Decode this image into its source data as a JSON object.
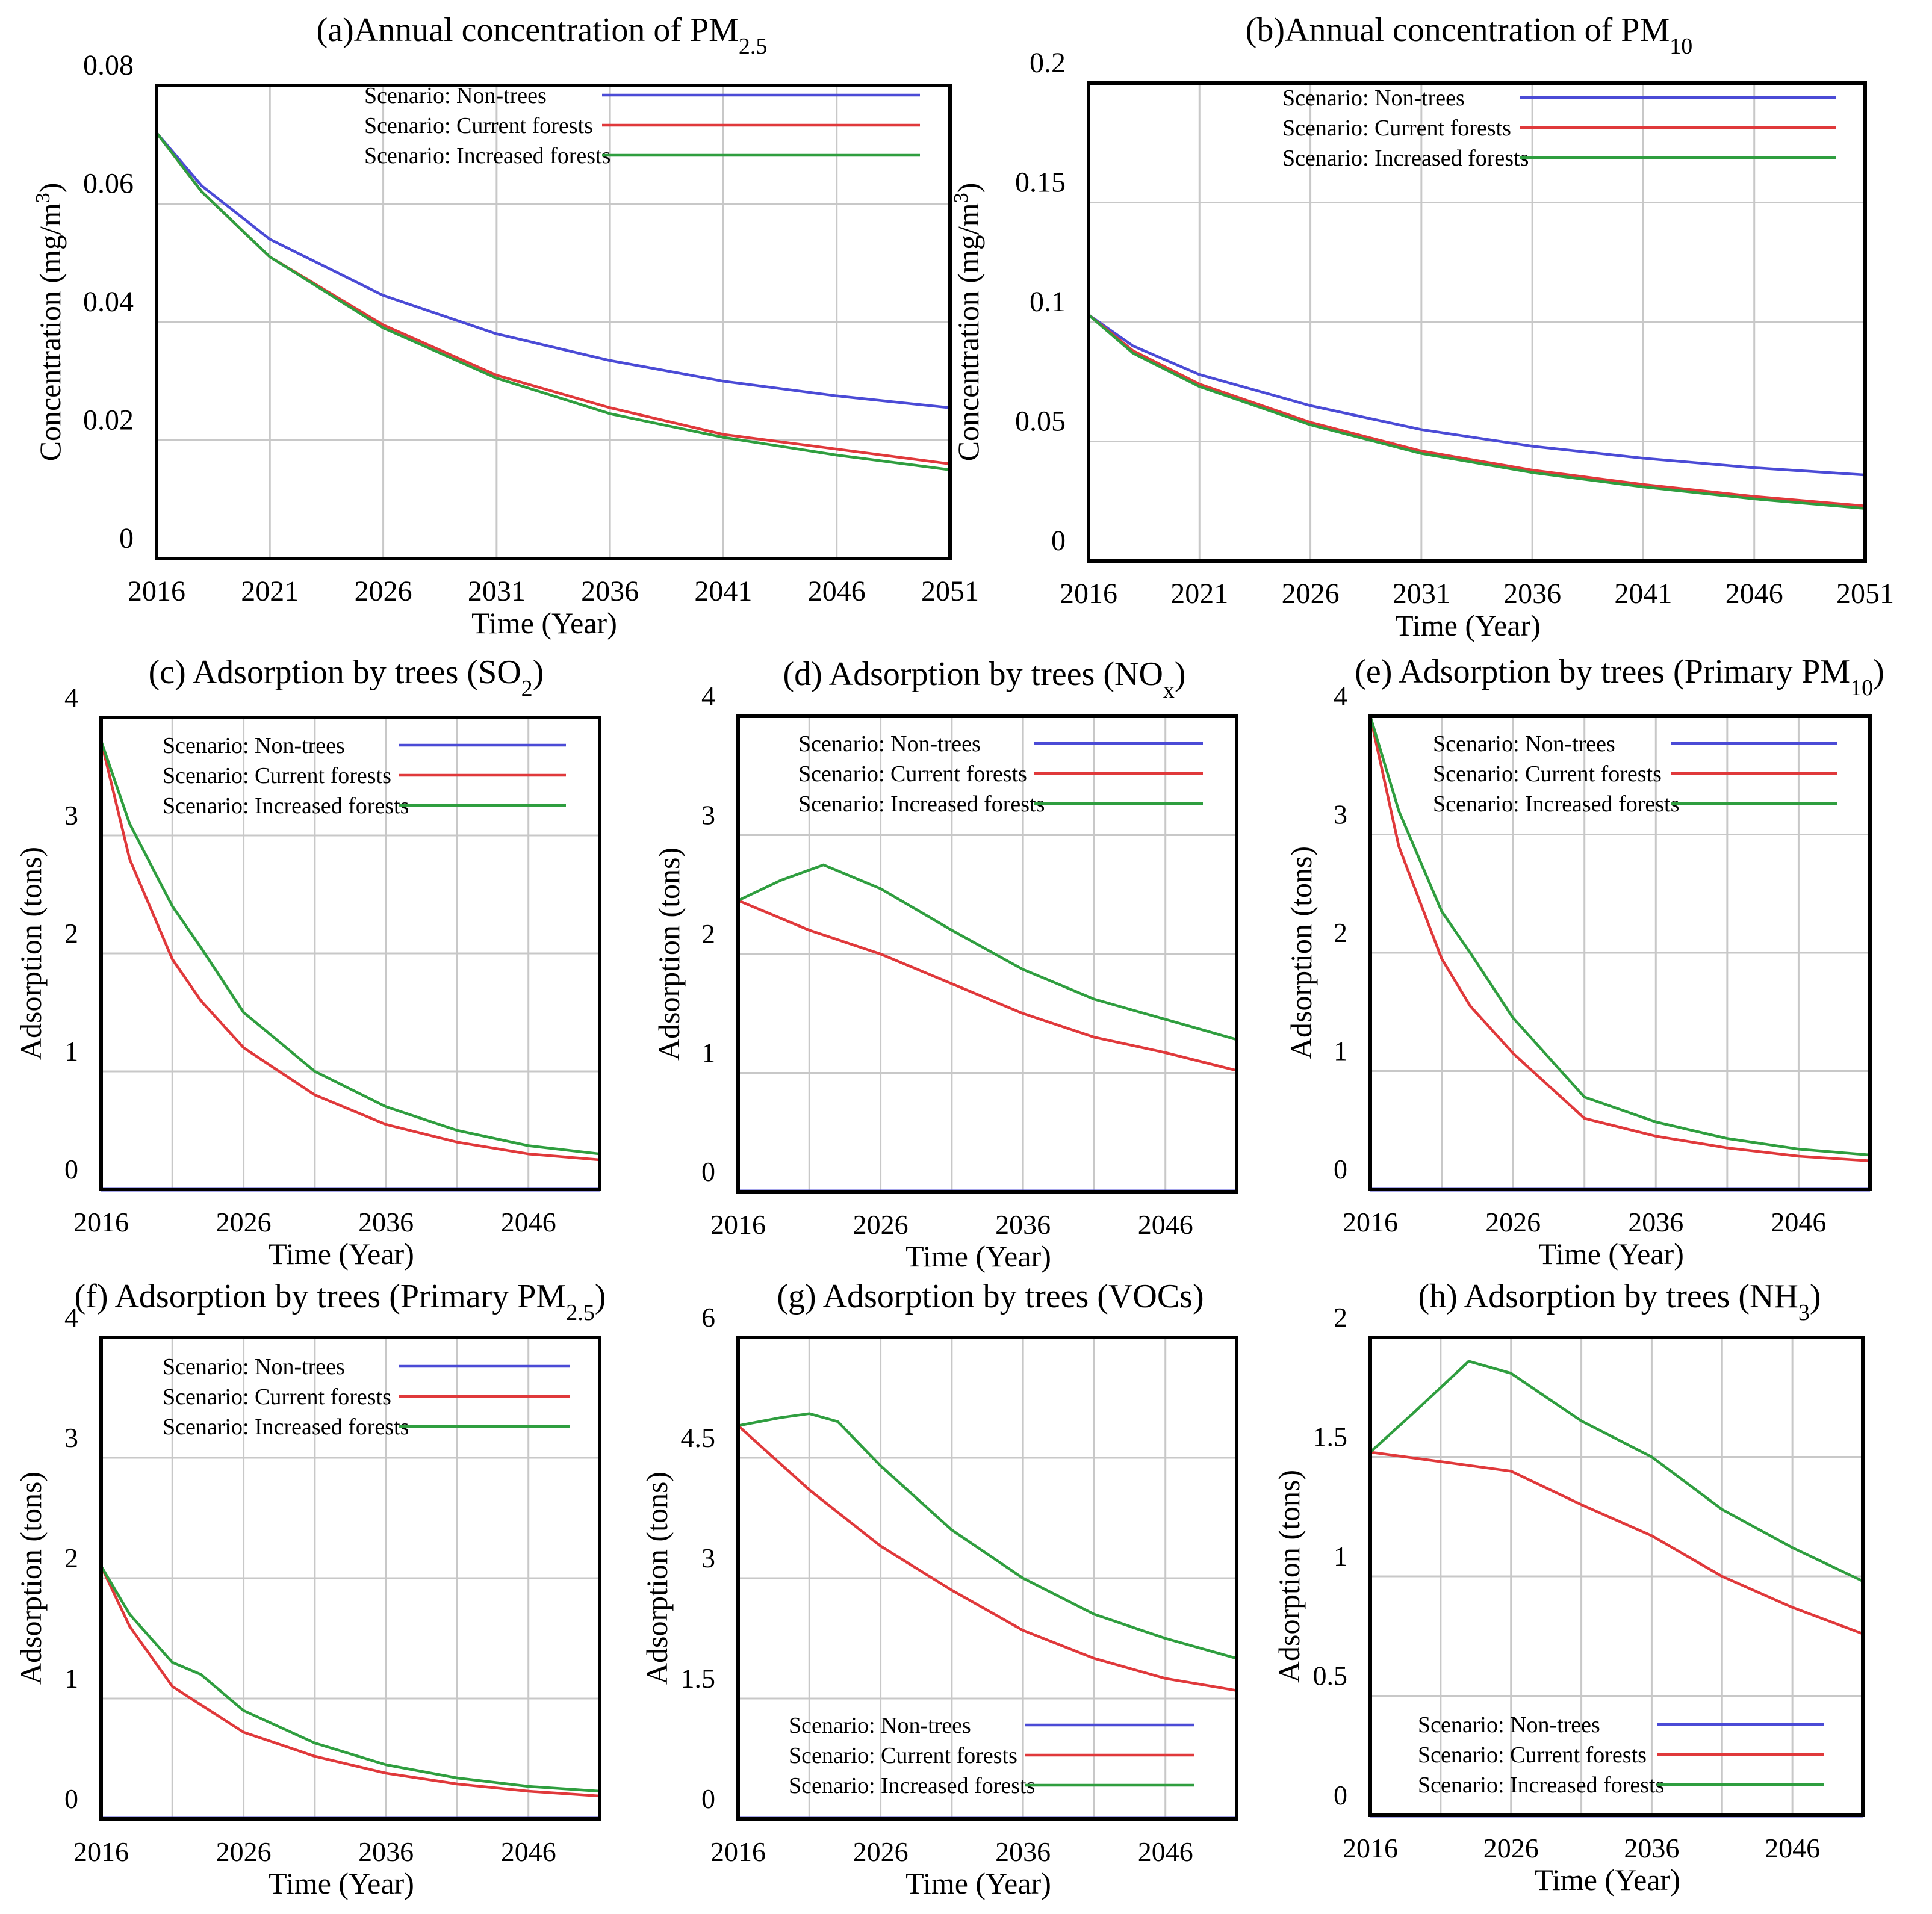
{
  "colors": {
    "non_trees": "#4b4bd6",
    "current_forests": "#e0393b",
    "increased_forests": "#2f9e3f",
    "frame": "#000000",
    "grid": "#c8c8c8"
  },
  "chart_data": [
    {
      "id": "a",
      "type": "line",
      "title": "(a)Annual concentration of PM",
      "title_sub": "2.5",
      "xlabel": "Time (Year)",
      "ylabel": "Concentration (mg/m",
      "ylabel_sup": "3",
      "ylabel_end": ")",
      "xlim": [
        2016,
        2051
      ],
      "ylim": [
        0,
        0.08
      ],
      "xticks": [
        2016,
        2021,
        2026,
        2031,
        2036,
        2041,
        2046,
        2051
      ],
      "xtick_labels": [
        "2016",
        "2021",
        "2026",
        "2031",
        "2036",
        "2041",
        "2046",
        "2051"
      ],
      "yticks": [
        0,
        0.02,
        0.04,
        0.06,
        0.08
      ],
      "ytick_labels": [
        "0",
        "0.02",
        "0.04",
        "0.06",
        "0.08"
      ],
      "legend_pos": "top",
      "series": [
        {
          "name": "Scenario: Non-trees",
          "color_key": "non_trees",
          "x": [
            2016,
            2018,
            2021,
            2026,
            2031,
            2036,
            2041,
            2046,
            2051
          ],
          "y": [
            0.072,
            0.063,
            0.054,
            0.0445,
            0.038,
            0.0335,
            0.03,
            0.0275,
            0.0255
          ]
        },
        {
          "name": "Scenario: Current forests",
          "color_key": "current_forests",
          "x": [
            2016,
            2018,
            2021,
            2026,
            2031,
            2036,
            2041,
            2046,
            2051
          ],
          "y": [
            0.072,
            0.062,
            0.051,
            0.0395,
            0.031,
            0.0255,
            0.021,
            0.0185,
            0.016
          ]
        },
        {
          "name": "Scenario: Increased forests",
          "color_key": "increased_forests",
          "x": [
            2016,
            2018,
            2021,
            2026,
            2031,
            2036,
            2041,
            2046,
            2051
          ],
          "y": [
            0.072,
            0.062,
            0.051,
            0.039,
            0.0305,
            0.0245,
            0.0205,
            0.0175,
            0.015
          ]
        }
      ]
    },
    {
      "id": "b",
      "type": "line",
      "title": "(b)Annual concentration of PM",
      "title_sub": "10",
      "xlabel": "Time (Year)",
      "ylabel": "Concentration (mg/m",
      "ylabel_sup": "3",
      "ylabel_end": ")",
      "xlim": [
        2016,
        2051
      ],
      "ylim": [
        0,
        0.2
      ],
      "xticks": [
        2016,
        2021,
        2026,
        2031,
        2036,
        2041,
        2046,
        2051
      ],
      "xtick_labels": [
        "2016",
        "2021",
        "2026",
        "2031",
        "2036",
        "2041",
        "2046",
        "2051"
      ],
      "yticks": [
        0,
        0.05,
        0.1,
        0.15,
        0.2
      ],
      "ytick_labels": [
        "0",
        "0.05",
        "0.1",
        "0.15",
        "0.2"
      ],
      "legend_pos": "top",
      "series": [
        {
          "name": "Scenario: Non-trees",
          "color_key": "non_trees",
          "x": [
            2016,
            2018,
            2021,
            2026,
            2031,
            2036,
            2041,
            2046,
            2051
          ],
          "y": [
            0.103,
            0.09,
            0.078,
            0.065,
            0.055,
            0.048,
            0.043,
            0.039,
            0.036
          ]
        },
        {
          "name": "Scenario: Current forests",
          "color_key": "current_forests",
          "x": [
            2016,
            2018,
            2021,
            2026,
            2031,
            2036,
            2041,
            2046,
            2051
          ],
          "y": [
            0.103,
            0.088,
            0.074,
            0.058,
            0.046,
            0.038,
            0.032,
            0.027,
            0.023
          ]
        },
        {
          "name": "Scenario: Increased forests",
          "color_key": "increased_forests",
          "x": [
            2016,
            2018,
            2021,
            2026,
            2031,
            2036,
            2041,
            2046,
            2051
          ],
          "y": [
            0.103,
            0.087,
            0.073,
            0.057,
            0.045,
            0.037,
            0.031,
            0.026,
            0.022
          ]
        }
      ]
    },
    {
      "id": "c",
      "type": "line",
      "title": "(c) Adsorption by trees (SO",
      "title_sub": "2",
      "title_end": ")",
      "xlabel": "Time (Year)",
      "ylabel": "Adsorption (tons)",
      "xlim": [
        2016,
        2051
      ],
      "ylim": [
        0,
        4
      ],
      "xticks": [
        2016,
        2026,
        2036,
        2046
      ],
      "xtick_labels": [
        "2016",
        "2026",
        "2036",
        "2046"
      ],
      "vgrid": [
        2016,
        2021,
        2026,
        2031,
        2036,
        2041,
        2046,
        2051
      ],
      "yticks": [
        0,
        1,
        2,
        3,
        4
      ],
      "ytick_labels": [
        "0",
        "1",
        "2",
        "3",
        "4"
      ],
      "legend_pos": "top",
      "series": [
        {
          "name": "Scenario: Non-trees",
          "color_key": "non_trees",
          "x": [
            2016,
            2051
          ],
          "y": [
            0,
            0
          ]
        },
        {
          "name": "Scenario: Current forests",
          "color_key": "current_forests",
          "x": [
            2016,
            2018,
            2021,
            2023,
            2026,
            2031,
            2036,
            2041,
            2046,
            2051
          ],
          "y": [
            3.8,
            2.8,
            1.95,
            1.6,
            1.2,
            0.8,
            0.55,
            0.4,
            0.3,
            0.25
          ]
        },
        {
          "name": "Scenario: Increased forests",
          "color_key": "increased_forests",
          "x": [
            2016,
            2018,
            2021,
            2023,
            2026,
            2031,
            2036,
            2041,
            2046,
            2051
          ],
          "y": [
            3.8,
            3.1,
            2.4,
            2.05,
            1.5,
            1.0,
            0.7,
            0.5,
            0.37,
            0.3
          ]
        }
      ]
    },
    {
      "id": "d",
      "type": "line",
      "title": "(d) Adsorption by trees (NO",
      "title_sub": "x",
      "title_end": ")",
      "xlabel": "Time (Year)",
      "ylabel": "Adsorption (tons)",
      "xlim": [
        2016,
        2051
      ],
      "ylim": [
        0,
        4
      ],
      "xticks": [
        2016,
        2026,
        2036,
        2046
      ],
      "xtick_labels": [
        "2016",
        "2026",
        "2036",
        "2046"
      ],
      "vgrid": [
        2016,
        2021,
        2026,
        2031,
        2036,
        2041,
        2046,
        2051
      ],
      "yticks": [
        0,
        1,
        2,
        3,
        4
      ],
      "ytick_labels": [
        "0",
        "1",
        "2",
        "3",
        "4"
      ],
      "legend_pos": "top",
      "series": [
        {
          "name": "Scenario: Non-trees",
          "color_key": "non_trees",
          "x": [
            2016,
            2051
          ],
          "y": [
            0,
            0
          ]
        },
        {
          "name": "Scenario: Current forests",
          "color_key": "current_forests",
          "x": [
            2016,
            2021,
            2026,
            2031,
            2036,
            2041,
            2046,
            2051
          ],
          "y": [
            2.45,
            2.2,
            2.0,
            1.75,
            1.5,
            1.3,
            1.17,
            1.02
          ]
        },
        {
          "name": "Scenario: Increased forests",
          "color_key": "increased_forests",
          "x": [
            2016,
            2019,
            2022,
            2026,
            2031,
            2036,
            2041,
            2046,
            2051
          ],
          "y": [
            2.45,
            2.62,
            2.75,
            2.55,
            2.2,
            1.87,
            1.62,
            1.45,
            1.28
          ]
        }
      ]
    },
    {
      "id": "e",
      "type": "line",
      "title": "(e) Adsorption by trees (Primary PM",
      "title_sub": "10",
      "title_end": ")",
      "xlabel": "Time (Year)",
      "ylabel": "Adsorption (tons)",
      "xlim": [
        2016,
        2051
      ],
      "ylim": [
        0,
        4
      ],
      "xticks": [
        2016,
        2026,
        2036,
        2046
      ],
      "xtick_labels": [
        "2016",
        "2026",
        "2036",
        "2046"
      ],
      "vgrid": [
        2016,
        2021,
        2026,
        2031,
        2036,
        2041,
        2046,
        2051
      ],
      "yticks": [
        0,
        1,
        2,
        3,
        4
      ],
      "ytick_labels": [
        "0",
        "1",
        "2",
        "3",
        "4"
      ],
      "legend_pos": "top",
      "series": [
        {
          "name": "Scenario: Non-trees",
          "color_key": "non_trees",
          "x": [
            2016,
            2051
          ],
          "y": [
            0,
            0
          ]
        },
        {
          "name": "Scenario: Current forests",
          "color_key": "current_forests",
          "x": [
            2016,
            2018,
            2021,
            2023,
            2026,
            2031,
            2036,
            2041,
            2046,
            2051
          ],
          "y": [
            4.0,
            2.9,
            1.95,
            1.55,
            1.15,
            0.6,
            0.45,
            0.35,
            0.28,
            0.24
          ]
        },
        {
          "name": "Scenario: Increased forests",
          "color_key": "increased_forests",
          "x": [
            2016,
            2018,
            2021,
            2023,
            2026,
            2031,
            2036,
            2041,
            2046,
            2051
          ],
          "y": [
            4.0,
            3.2,
            2.35,
            2.0,
            1.45,
            0.78,
            0.57,
            0.43,
            0.34,
            0.29
          ]
        }
      ]
    },
    {
      "id": "f",
      "type": "line",
      "title": "(f) Adsorption by trees (Primary PM",
      "title_sub": "2.5",
      "title_end": ")",
      "xlabel": "Time (Year)",
      "ylabel": "Adsorption (tons)",
      "xlim": [
        2016,
        2051
      ],
      "ylim": [
        0,
        4
      ],
      "xticks": [
        2016,
        2026,
        2036,
        2046
      ],
      "xtick_labels": [
        "2016",
        "2026",
        "2036",
        "2046"
      ],
      "vgrid": [
        2016,
        2021,
        2026,
        2031,
        2036,
        2041,
        2046,
        2051
      ],
      "yticks": [
        0,
        1,
        2,
        3,
        4
      ],
      "ytick_labels": [
        "0",
        "1",
        "2",
        "3",
        "4"
      ],
      "legend_pos": "top",
      "series": [
        {
          "name": "Scenario: Non-trees",
          "color_key": "non_trees",
          "x": [
            2016,
            2051
          ],
          "y": [
            0,
            0
          ]
        },
        {
          "name": "Scenario: Current forests",
          "color_key": "current_forests",
          "x": [
            2016,
            2018,
            2021,
            2026,
            2031,
            2036,
            2041,
            2046,
            2051
          ],
          "y": [
            2.1,
            1.6,
            1.1,
            0.72,
            0.52,
            0.38,
            0.29,
            0.23,
            0.19
          ]
        },
        {
          "name": "Scenario: Increased forests",
          "color_key": "increased_forests",
          "x": [
            2016,
            2018,
            2021,
            2023,
            2026,
            2031,
            2036,
            2041,
            2046,
            2051
          ],
          "y": [
            2.1,
            1.7,
            1.3,
            1.2,
            0.9,
            0.63,
            0.45,
            0.34,
            0.27,
            0.23
          ]
        }
      ]
    },
    {
      "id": "g",
      "type": "line",
      "title": "(g) Adsorption by trees (VOCs)",
      "xlabel": "Time (Year)",
      "ylabel": "Adsorption (tons)",
      "xlim": [
        2016,
        2051
      ],
      "ylim": [
        0,
        6
      ],
      "xticks": [
        2016,
        2026,
        2036,
        2046
      ],
      "xtick_labels": [
        "2016",
        "2026",
        "2036",
        "2046"
      ],
      "vgrid": [
        2016,
        2021,
        2026,
        2031,
        2036,
        2041,
        2046,
        2051
      ],
      "yticks": [
        0,
        1.5,
        3,
        4.5,
        6
      ],
      "ytick_labels": [
        "0",
        "1.5",
        "3",
        "4.5",
        "6"
      ],
      "legend_pos": "bottom",
      "series": [
        {
          "name": "Scenario: Non-trees",
          "color_key": "non_trees",
          "x": [
            2016,
            2051
          ],
          "y": [
            0,
            0
          ]
        },
        {
          "name": "Scenario: Current forests",
          "color_key": "current_forests",
          "x": [
            2016,
            2021,
            2026,
            2031,
            2036,
            2041,
            2046,
            2051
          ],
          "y": [
            4.9,
            4.1,
            3.4,
            2.85,
            2.35,
            2.0,
            1.75,
            1.6
          ]
        },
        {
          "name": "Scenario: Increased forests",
          "color_key": "increased_forests",
          "x": [
            2016,
            2019,
            2021,
            2023,
            2026,
            2031,
            2036,
            2041,
            2046,
            2051
          ],
          "y": [
            4.9,
            5.0,
            5.05,
            4.95,
            4.4,
            3.6,
            3.0,
            2.55,
            2.25,
            2.0
          ]
        }
      ]
    },
    {
      "id": "h",
      "type": "line",
      "title": "(h) Adsorption by trees (NH",
      "title_sub": "3",
      "title_end": ")",
      "xlabel": "Time (Year)",
      "ylabel": "Adsorption (tons)",
      "xlim": [
        2016,
        2051
      ],
      "ylim": [
        0,
        2
      ],
      "xticks": [
        2016,
        2026,
        2036,
        2046
      ],
      "xtick_labels": [
        "2016",
        "2026",
        "2036",
        "2046"
      ],
      "vgrid": [
        2016,
        2021,
        2026,
        2031,
        2036,
        2041,
        2046,
        2051
      ],
      "yticks": [
        0,
        0.5,
        1,
        1.5,
        2
      ],
      "ytick_labels": [
        "0",
        "0.5",
        "1",
        "1.5",
        "2"
      ],
      "legend_pos": "bottom",
      "series": [
        {
          "name": "Scenario: Non-trees",
          "color_key": "non_trees",
          "x": [
            2016,
            2051
          ],
          "y": [
            0,
            0
          ]
        },
        {
          "name": "Scenario: Current forests",
          "color_key": "current_forests",
          "x": [
            2016,
            2021,
            2026,
            2031,
            2036,
            2041,
            2046,
            2051
          ],
          "y": [
            1.52,
            1.48,
            1.44,
            1.3,
            1.17,
            1.0,
            0.87,
            0.76
          ]
        },
        {
          "name": "Scenario: Increased forests",
          "color_key": "increased_forests",
          "x": [
            2016,
            2019,
            2023,
            2026,
            2031,
            2036,
            2041,
            2046,
            2051
          ],
          "y": [
            1.52,
            1.68,
            1.9,
            1.85,
            1.65,
            1.5,
            1.28,
            1.12,
            0.98
          ]
        }
      ]
    }
  ]
}
